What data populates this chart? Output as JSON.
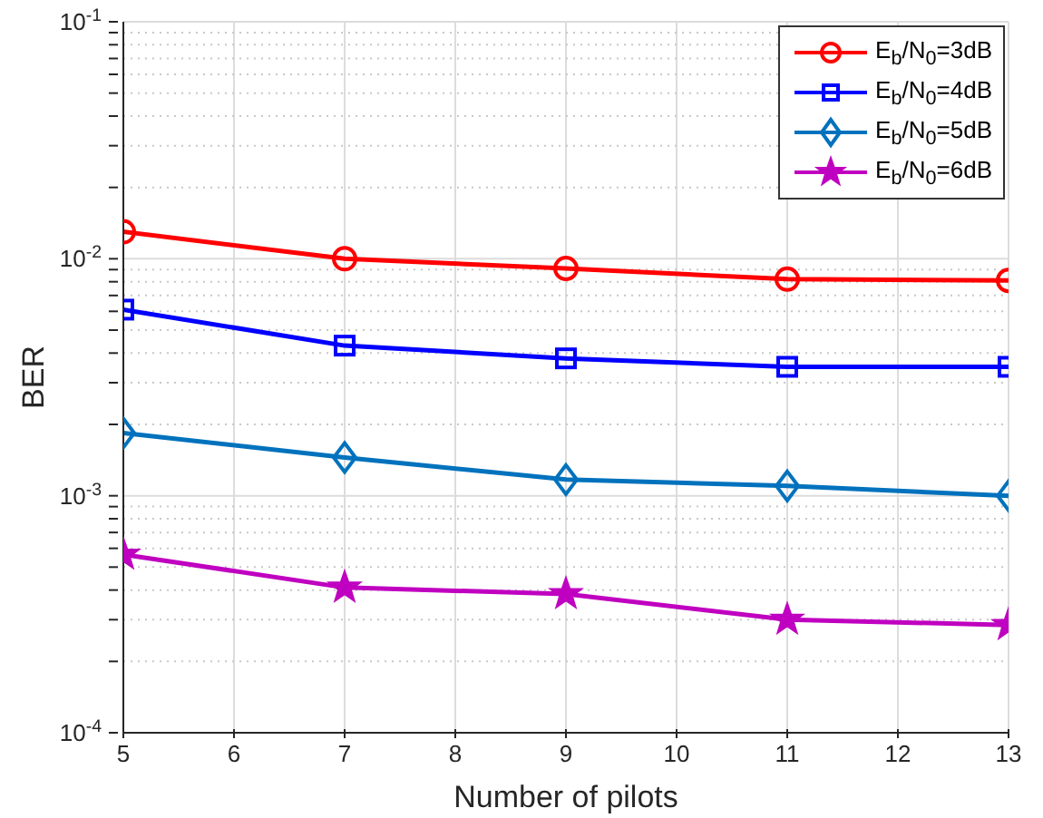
{
  "chart_data": {
    "type": "line",
    "xlabel": "Number of pilots",
    "ylabel": "BER",
    "x": [
      5,
      7,
      9,
      11,
      13
    ],
    "series": [
      {
        "name": "E$_{b}$/N$_{0}$=3dB",
        "color": "#ff0000",
        "marker": "circle",
        "values": [
          0.013,
          0.01,
          0.0091,
          0.0082,
          0.0081
        ]
      },
      {
        "name": "E$_{b}$/N$_{0}$=4dB",
        "color": "#0000ff",
        "marker": "square",
        "values": [
          0.0061,
          0.0043,
          0.0038,
          0.0035,
          0.0035
        ]
      },
      {
        "name": "E$_{b}$/N$_{0}$=5dB",
        "color": "#0072bd",
        "marker": "diamond",
        "values": [
          0.00184,
          0.00145,
          0.00117,
          0.0011,
          0.001
        ]
      },
      {
        "name": "E$_{b}$/N$_{0}$=6dB",
        "color": "#c000c0",
        "marker": "star",
        "values": [
          0.000565,
          0.00041,
          0.000385,
          0.0003,
          0.000285
        ]
      }
    ],
    "xlim": [
      5,
      13
    ],
    "xticks": [
      5,
      6,
      7,
      8,
      9,
      10,
      11,
      12,
      13
    ],
    "log": "y",
    "ylim": [
      0.0001,
      0.1
    ],
    "yticks": [
      {
        "value": 0.0001,
        "label": "10$^{-4}$"
      },
      {
        "value": 0.0002,
        "label": null
      },
      {
        "value": 0.0003,
        "label": null
      },
      {
        "value": 0.0004,
        "label": null
      },
      {
        "value": 0.0005,
        "label": null
      },
      {
        "value": 0.0006,
        "label": null
      },
      {
        "value": 0.0007,
        "label": null
      },
      {
        "value": 0.0008,
        "label": null
      },
      {
        "value": 0.0009,
        "label": null
      },
      {
        "value": 0.001,
        "label": "10$^{-3}$"
      },
      {
        "value": 0.002,
        "label": null
      },
      {
        "value": 0.003,
        "label": null
      },
      {
        "value": 0.004,
        "label": null
      },
      {
        "value": 0.005,
        "label": null
      },
      {
        "value": 0.006,
        "label": null
      },
      {
        "value": 0.007,
        "label": null
      },
      {
        "value": 0.008,
        "label": null
      },
      {
        "value": 0.009,
        "label": null
      },
      {
        "value": 0.01,
        "label": "10$^{-2}$"
      },
      {
        "value": 0.02,
        "label": null
      },
      {
        "value": 0.03,
        "label": null
      },
      {
        "value": 0.04,
        "label": null
      },
      {
        "value": 0.05,
        "label": null
      },
      {
        "value": 0.06,
        "label": null
      },
      {
        "value": 0.07,
        "label": null
      },
      {
        "value": 0.08,
        "label": null
      },
      {
        "value": 0.09,
        "label": null
      },
      {
        "value": 0.1,
        "label": "10$^{-1}$"
      }
    ],
    "grid": true,
    "legend": "top right",
    "line_style": "solid"
  }
}
